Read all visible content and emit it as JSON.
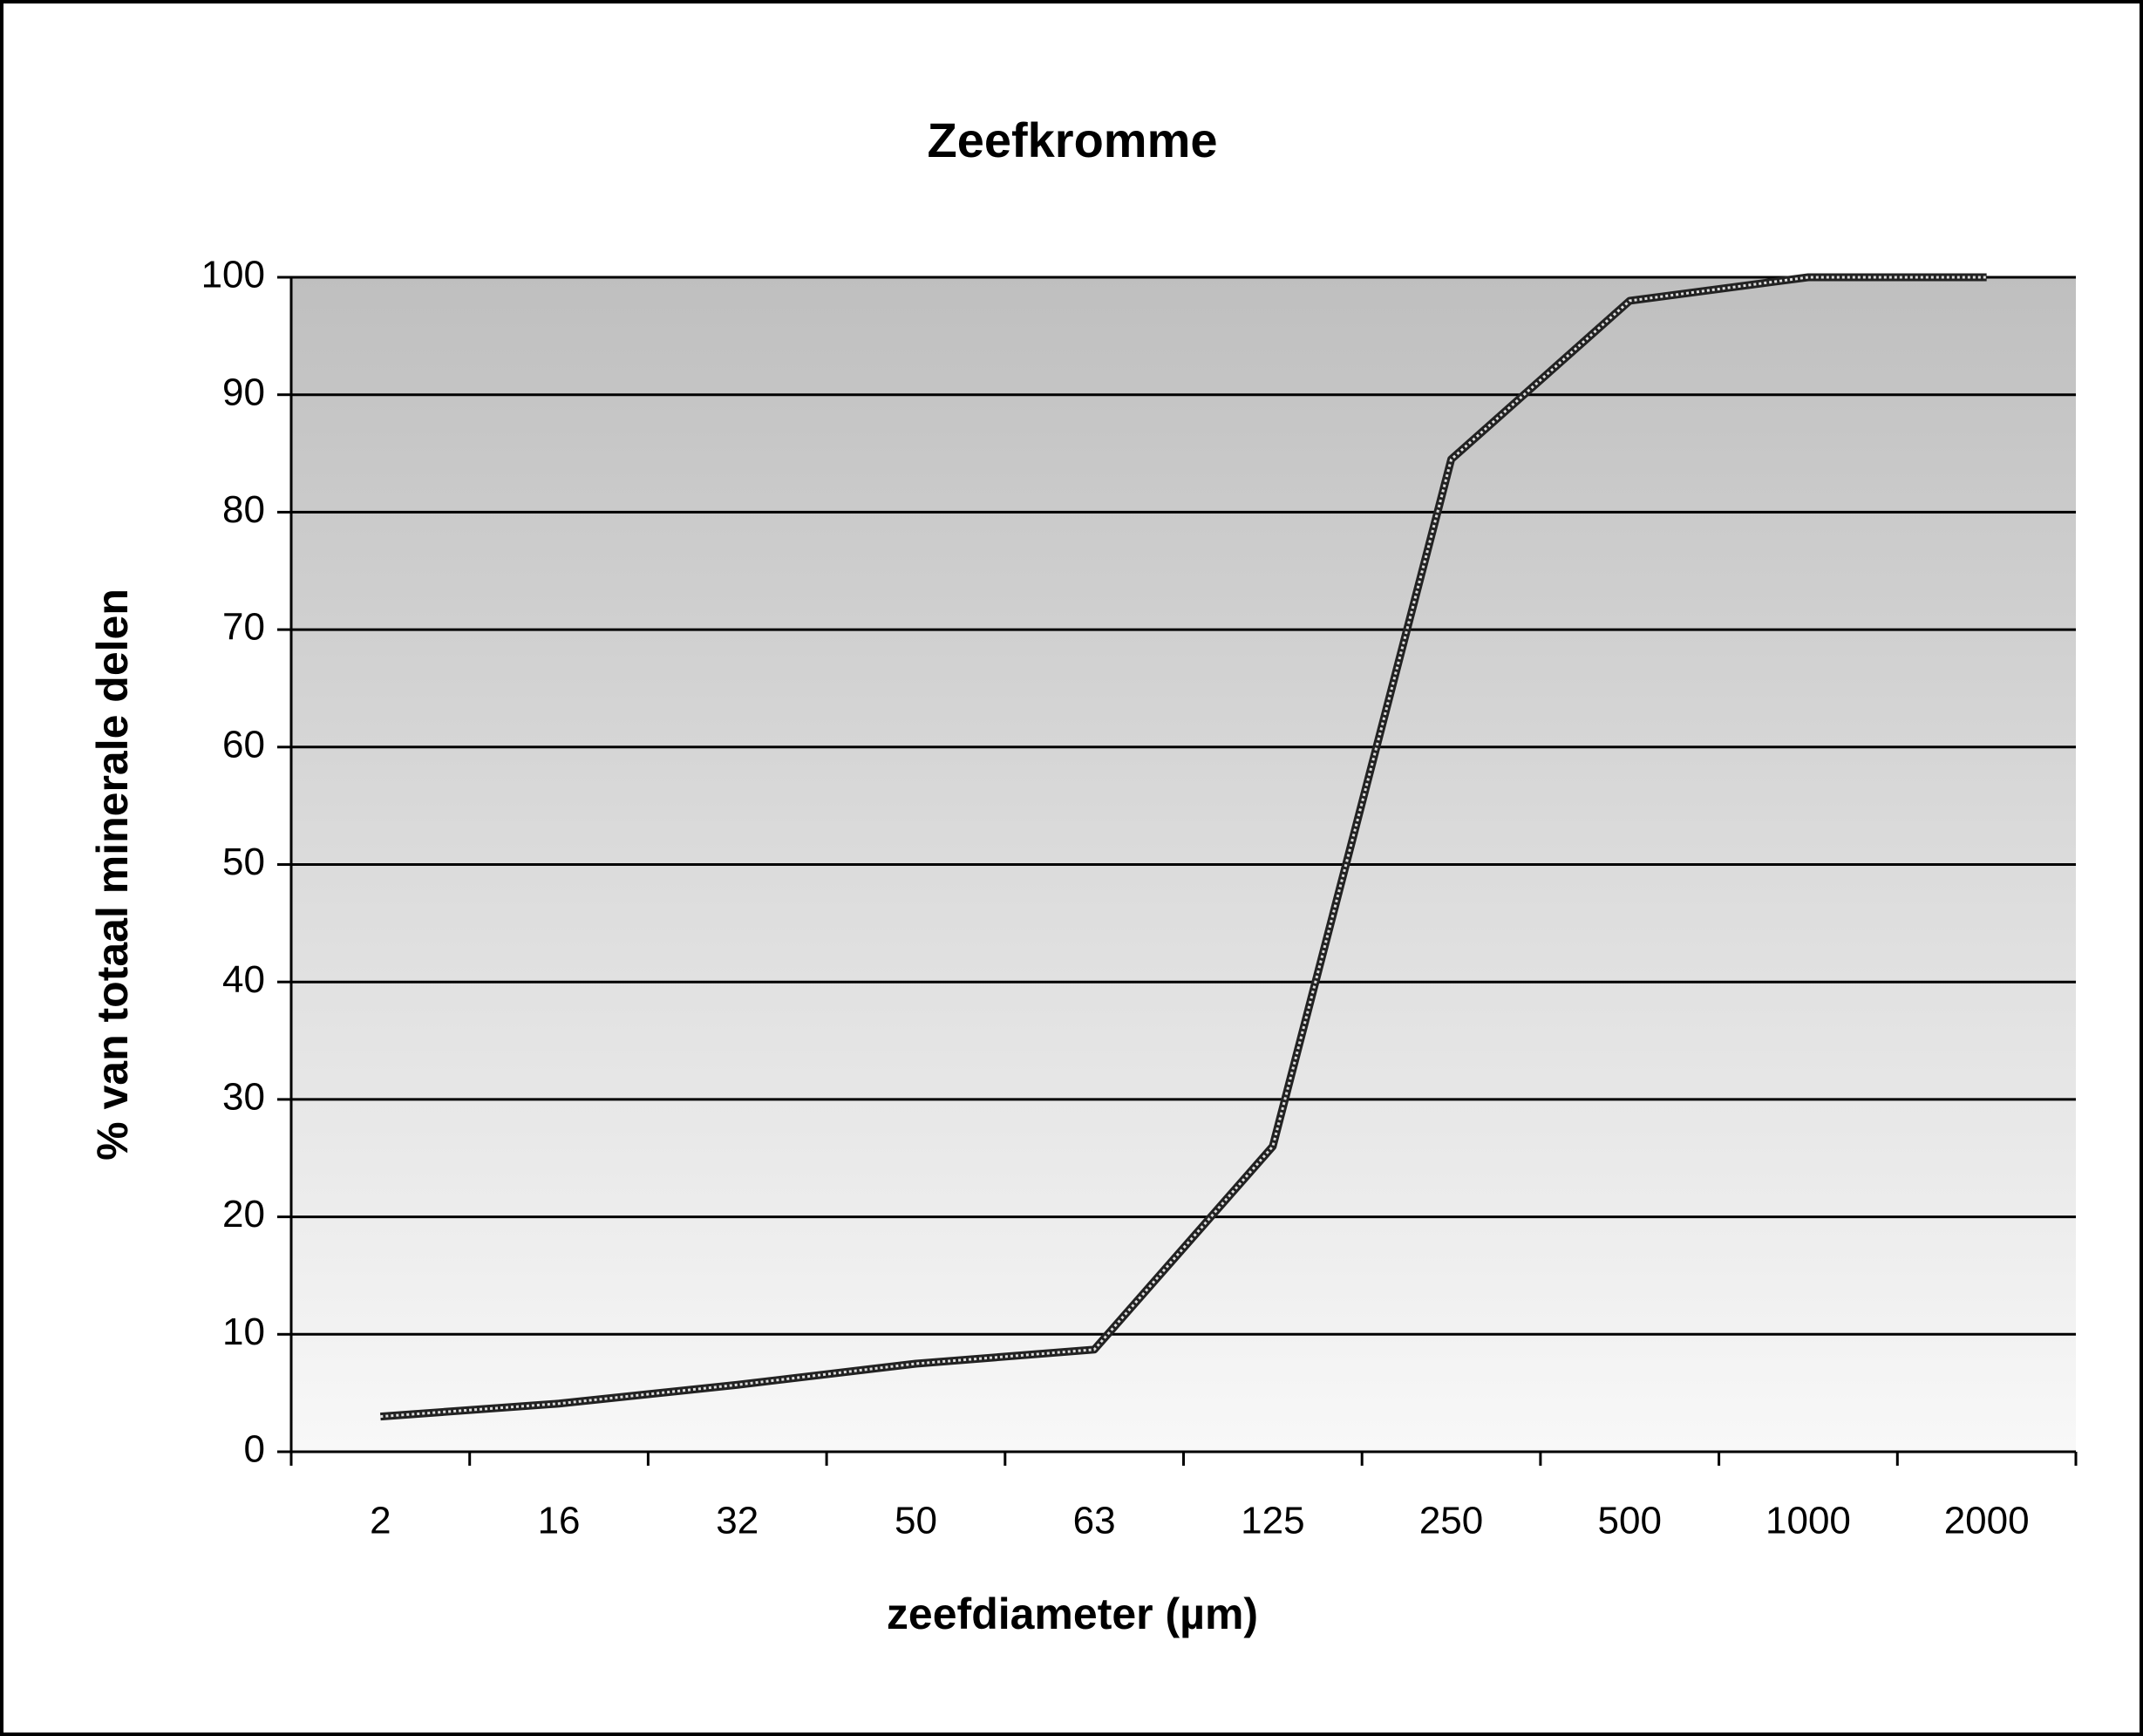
{
  "chart_data": {
    "type": "line",
    "title": "Zeefkromme",
    "x_label": "zeefdiameter (µm)",
    "y_label": "% van totaal minerale delen",
    "categories": [
      "2",
      "16",
      "32",
      "50",
      "63",
      "125",
      "250",
      "500",
      "1000",
      "2000"
    ],
    "series": [
      {
        "name": "Zeefkromme",
        "color": "#222222",
        "values": [
          3,
          4.1,
          5.7,
          7.5,
          8.7,
          26,
          84.5,
          98,
          100,
          100
        ]
      }
    ],
    "ylim": [
      0,
      100
    ],
    "yticks": [
      0,
      10,
      20,
      30,
      40,
      50,
      60,
      70,
      80,
      90,
      100
    ],
    "grid": true
  }
}
